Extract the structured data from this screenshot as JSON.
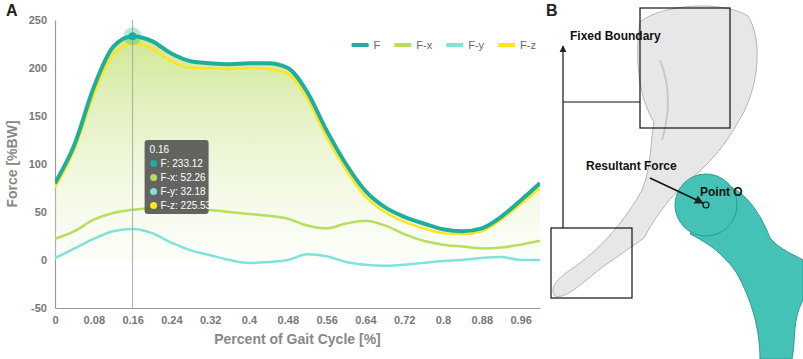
{
  "chart_data": {
    "type": "line",
    "title": "A",
    "x_label": "Percent of Gait Cycle [%]",
    "y_label": "Force [%BW]",
    "x": [
      0,
      0.04,
      0.08,
      0.12,
      0.16,
      0.2,
      0.24,
      0.28,
      0.32,
      0.36,
      0.4,
      0.44,
      0.48,
      0.52,
      0.56,
      0.6,
      0.64,
      0.68,
      0.72,
      0.76,
      0.8,
      0.84,
      0.88,
      0.92,
      0.96,
      1
    ],
    "series": [
      {
        "name": "F",
        "color": "#1fae9c",
        "type": "area",
        "values": [
          80,
          120,
          180,
          222,
          233.12,
          228,
          215,
          207,
          205,
          204,
          205,
          205,
          200,
          175,
          135,
          100,
          72,
          55,
          45,
          38,
          32,
          30,
          33,
          45,
          62,
          80
        ]
      },
      {
        "name": "F-x",
        "color": "#b5df5c",
        "values": [
          22,
          30,
          42,
          49,
          52.26,
          54,
          54,
          53,
          52,
          50,
          48,
          46,
          43,
          36,
          33,
          38,
          41,
          36,
          27,
          20,
          16,
          14,
          12,
          13,
          16,
          20
        ]
      },
      {
        "name": "F-y",
        "color": "#7fe3da",
        "values": [
          2,
          12,
          22,
          30,
          32.18,
          28,
          18,
          10,
          5,
          0,
          -3,
          -2,
          0,
          6,
          4,
          -2,
          -5,
          -6,
          -5,
          -3,
          -1,
          0,
          2,
          3,
          0,
          0
        ]
      },
      {
        "name": "F-z",
        "color": "#ffe51f",
        "values": [
          75,
          115,
          172,
          214,
          225.53,
          220,
          207,
          200,
          200,
          199,
          200,
          199,
          194,
          168,
          128,
          94,
          66,
          50,
          40,
          33,
          28,
          27,
          30,
          42,
          58,
          75
        ]
      }
    ],
    "xlim": [
      0,
      1
    ],
    "xticks": [
      0,
      0.08,
      0.16,
      0.24,
      0.32,
      0.4,
      0.48,
      0.56,
      0.64,
      0.72,
      0.8,
      0.88,
      0.96
    ],
    "ylim": [
      -50,
      250
    ],
    "yticks": [
      -50,
      0,
      50,
      100,
      150,
      200,
      250
    ],
    "grid": false,
    "legend": "top-right",
    "annotation": {
      "x": 0.16,
      "label": "0.16",
      "lines": [
        "F: 233.12",
        "F-x: 52.26",
        "F-y: 32.18",
        "F-z: 225.53"
      ]
    }
  },
  "diagram": {
    "panel": "B",
    "fixed_boundary": "Fixed Boundary",
    "resultant_force": "Resultant Force",
    "point": "Point O"
  }
}
